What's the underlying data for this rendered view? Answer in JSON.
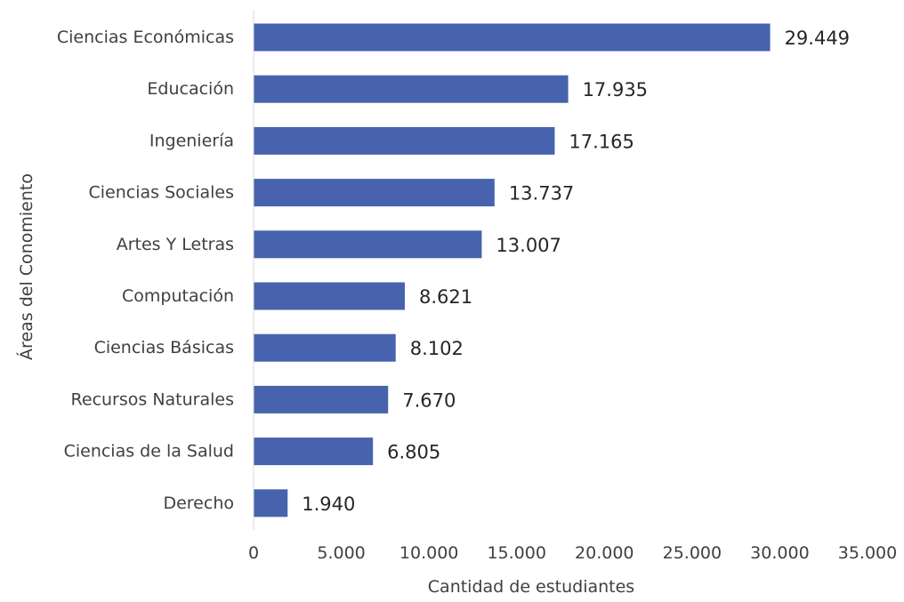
{
  "chart_data": {
    "type": "bar",
    "orientation": "horizontal",
    "categories": [
      "Ciencias Económicas",
      "Educación",
      "Ingeniería",
      "Ciencias Sociales",
      "Artes Y Letras",
      "Computación",
      "Ciencias Básicas",
      "Recursos Naturales",
      "Ciencias de la Salud",
      "Derecho"
    ],
    "values": [
      29449,
      17935,
      17165,
      13737,
      13007,
      8621,
      8102,
      7670,
      6805,
      1940
    ],
    "value_labels": [
      "29.449",
      "17.935",
      "17.165",
      "13.737",
      "13.007",
      "8.621",
      "8.102",
      "7.670",
      "6.805",
      "1.940"
    ],
    "xlabel": "Cantidad de estudiantes",
    "ylabel": "Áreas del Conomiento",
    "xlim": [
      0,
      35000
    ],
    "x_ticks": [
      0,
      5000,
      10000,
      15000,
      20000,
      25000,
      30000,
      35000
    ],
    "x_tick_labels": [
      "0",
      "5.000",
      "10.000",
      "15.000",
      "20.000",
      "25.000",
      "30.000",
      "35.000"
    ],
    "bar_color": "#4763ad",
    "grid": false,
    "legend": "none"
  }
}
